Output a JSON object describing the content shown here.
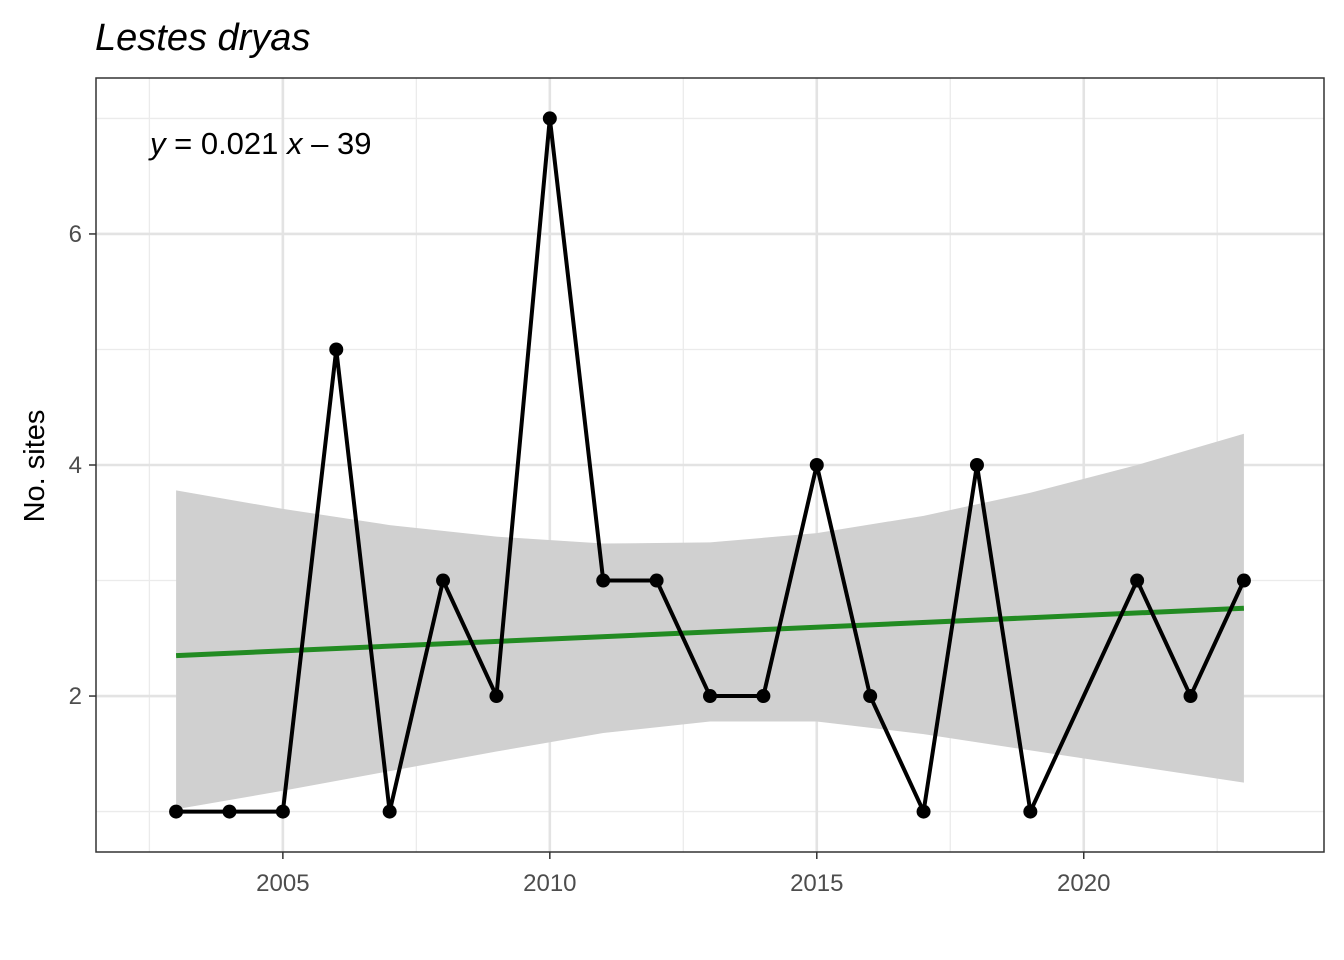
{
  "chart_data": {
    "type": "line",
    "title": "Lestes dryas",
    "xlabel": "",
    "ylabel": "No. sites",
    "xlim": [
      2001.5,
      2024.5
    ],
    "ylim": [
      0.65,
      7.35
    ],
    "x_ticks": [
      2005,
      2010,
      2015,
      2020
    ],
    "x_tick_labels": [
      "2005",
      "2010",
      "2015",
      "2020"
    ],
    "y_ticks": [
      2,
      4,
      6
    ],
    "y_tick_labels": [
      "2",
      "4",
      "6"
    ],
    "grid": true,
    "legend": "none",
    "series": [
      {
        "type": "line+points",
        "color": "#000000",
        "x": [
          2003,
          2004,
          2005,
          2006,
          2007,
          2008,
          2009,
          2010,
          2011,
          2012,
          2013,
          2014,
          2015,
          2016,
          2017,
          2018,
          2019,
          2021,
          2022,
          2023
        ],
        "y": [
          1,
          1,
          1,
          5,
          1,
          3,
          2,
          7,
          3,
          3,
          2,
          2,
          4,
          2,
          1,
          4,
          1,
          3,
          2,
          3
        ]
      }
    ],
    "trend": {
      "color": "#228B22",
      "slope": 0.021,
      "intercept": -39,
      "x_range": [
        2003,
        2023
      ],
      "y_start": 2.35,
      "y_end": 2.76,
      "band_color": "#d0d0d0",
      "band_x": [
        2003,
        2005,
        2007,
        2009,
        2011,
        2013,
        2015,
        2017,
        2019,
        2021,
        2023
      ],
      "band_lower": [
        1.02,
        1.18,
        1.35,
        1.52,
        1.68,
        1.78,
        1.78,
        1.67,
        1.53,
        1.39,
        1.25
      ],
      "band_upper": [
        3.78,
        3.62,
        3.48,
        3.38,
        3.32,
        3.33,
        3.41,
        3.56,
        3.76,
        4.0,
        4.27
      ]
    },
    "annotation": {
      "y_var": "y",
      "eq_mid": " = 0.021 ",
      "x_var": "x",
      "eq_end": " – 39"
    }
  }
}
